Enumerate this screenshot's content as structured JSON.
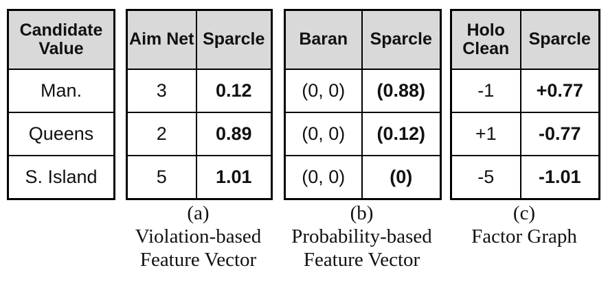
{
  "tables": {
    "candidate": {
      "header": [
        "Candidate Value"
      ],
      "rows": [
        [
          "Man."
        ],
        [
          "Queens"
        ],
        [
          "S. Island"
        ]
      ]
    },
    "a": {
      "headers": [
        "Aim Net",
        "Sparcle"
      ],
      "rows": [
        [
          "3",
          "0.12"
        ],
        [
          "2",
          "0.89"
        ],
        [
          "5",
          "1.01"
        ]
      ]
    },
    "b": {
      "headers": [
        "Baran",
        "Sparcle"
      ],
      "rows": [
        [
          "(0, 0)",
          "(0.88)"
        ],
        [
          "(0, 0)",
          "(0.12)"
        ],
        [
          "(0, 0)",
          "(0)"
        ]
      ]
    },
    "c": {
      "headers": [
        "Holo Clean",
        "Sparcle"
      ],
      "rows": [
        [
          "-1",
          "+0.77"
        ],
        [
          "+1",
          "-0.77"
        ],
        [
          "-5",
          "-1.01"
        ]
      ]
    }
  },
  "captions": {
    "a": {
      "label": "(a)",
      "line1": "Violation-based",
      "line2": "Feature Vector"
    },
    "b": {
      "label": "(b)",
      "line1": "Probability-based",
      "line2": "Feature Vector"
    },
    "c": {
      "label": "(c)",
      "line1": "Factor Graph"
    }
  }
}
